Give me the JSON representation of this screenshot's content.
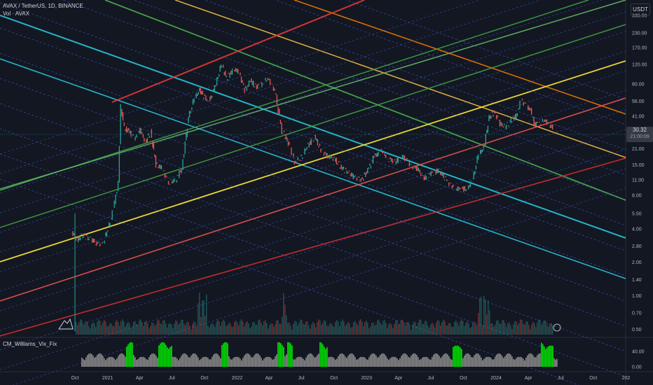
{
  "header": {
    "symbol": "AVAX / TetherUS, 1D, BINANCE",
    "volume": "Vol · AVAX"
  },
  "currency": "USDT",
  "last_price": "30.32",
  "countdown": "21:00:09",
  "oscillator": {
    "name": "CM_Williams_Vix_Fix",
    "ticks": [
      "40.00",
      "0.00"
    ]
  },
  "chart_data": {
    "type": "candlestick",
    "x_ticks": [
      "Oct",
      "2021",
      "Apr",
      "Jul",
      "Oct",
      "2022",
      "Apr",
      "Jul",
      "Oct",
      "2023",
      "Apr",
      "Jul",
      "Oct",
      "2024",
      "Apr",
      "Jul",
      "Oct",
      "202"
    ],
    "y_scale": "log",
    "y_ticks": [
      "330.00",
      "230.00",
      "170.00",
      "120.00",
      "80.00",
      "56.00",
      "41.00",
      "30.32",
      "21.00",
      "15.00",
      "11.00",
      "8.00",
      "5.50",
      "4.00",
      "2.80",
      "2.00",
      "1.40",
      "1.00",
      "0.70",
      "0.50"
    ],
    "price_path": [
      {
        "date": "2020-09-22",
        "close": 3.8
      },
      {
        "date": "2020-10-10",
        "close": 3.2
      },
      {
        "date": "2020-10-25",
        "close": 3.5
      },
      {
        "date": "2020-11-10",
        "close": 3.3
      },
      {
        "date": "2020-12-01",
        "close": 3.0
      },
      {
        "date": "2020-12-20",
        "close": 2.9
      },
      {
        "date": "2021-01-05",
        "close": 4.0
      },
      {
        "date": "2021-01-20",
        "close": 6.0
      },
      {
        "date": "2021-02-03",
        "close": 10.5
      },
      {
        "date": "2021-02-10",
        "close": 50.0
      },
      {
        "date": "2021-02-20",
        "close": 32.0
      },
      {
        "date": "2021-03-05",
        "close": 30.0
      },
      {
        "date": "2021-03-20",
        "close": 25.0
      },
      {
        "date": "2021-04-05",
        "close": 31.0
      },
      {
        "date": "2021-04-20",
        "close": 24.0
      },
      {
        "date": "2021-05-05",
        "close": 30.0
      },
      {
        "date": "2021-05-20",
        "close": 15.0
      },
      {
        "date": "2021-06-05",
        "close": 14.0
      },
      {
        "date": "2021-06-25",
        "close": 10.5
      },
      {
        "date": "2021-07-15",
        "close": 11.0
      },
      {
        "date": "2021-08-01",
        "close": 14.0
      },
      {
        "date": "2021-08-20",
        "close": 40.0
      },
      {
        "date": "2021-09-05",
        "close": 60.0
      },
      {
        "date": "2021-09-20",
        "close": 70.0
      },
      {
        "date": "2021-10-05",
        "close": 60.0
      },
      {
        "date": "2021-10-20",
        "close": 58.0
      },
      {
        "date": "2021-11-05",
        "close": 80.0
      },
      {
        "date": "2021-11-20",
        "close": 120.0
      },
      {
        "date": "2021-12-05",
        "close": 90.0
      },
      {
        "date": "2021-12-25",
        "close": 110.0
      },
      {
        "date": "2022-01-10",
        "close": 100.0
      },
      {
        "date": "2022-01-25",
        "close": 70.0
      },
      {
        "date": "2022-02-10",
        "close": 85.0
      },
      {
        "date": "2022-02-25",
        "close": 75.0
      },
      {
        "date": "2022-03-15",
        "close": 80.0
      },
      {
        "date": "2022-04-01",
        "close": 90.0
      },
      {
        "date": "2022-04-20",
        "close": 70.0
      },
      {
        "date": "2022-05-10",
        "close": 30.0
      },
      {
        "date": "2022-05-25",
        "close": 25.0
      },
      {
        "date": "2022-06-15",
        "close": 16.0
      },
      {
        "date": "2022-07-01",
        "close": 17.0
      },
      {
        "date": "2022-07-20",
        "close": 22.0
      },
      {
        "date": "2022-08-10",
        "close": 27.0
      },
      {
        "date": "2022-08-25",
        "close": 21.0
      },
      {
        "date": "2022-09-15",
        "close": 18.0
      },
      {
        "date": "2022-10-05",
        "close": 17.0
      },
      {
        "date": "2022-10-25",
        "close": 14.0
      },
      {
        "date": "2022-11-10",
        "close": 13.0
      },
      {
        "date": "2022-11-25",
        "close": 12.0
      },
      {
        "date": "2022-12-20",
        "close": 11.0
      },
      {
        "date": "2023-01-10",
        "close": 14.0
      },
      {
        "date": "2023-01-25",
        "close": 18.0
      },
      {
        "date": "2023-02-15",
        "close": 20.0
      },
      {
        "date": "2023-03-05",
        "close": 17.0
      },
      {
        "date": "2023-03-25",
        "close": 16.0
      },
      {
        "date": "2023-04-15",
        "close": 18.0
      },
      {
        "date": "2023-05-05",
        "close": 15.0
      },
      {
        "date": "2023-05-25",
        "close": 14.0
      },
      {
        "date": "2023-06-15",
        "close": 11.5
      },
      {
        "date": "2023-07-05",
        "close": 12.5
      },
      {
        "date": "2023-07-25",
        "close": 13.5
      },
      {
        "date": "2023-08-15",
        "close": 11.0
      },
      {
        "date": "2023-09-05",
        "close": 9.5
      },
      {
        "date": "2023-09-25",
        "close": 9.0
      },
      {
        "date": "2023-10-15",
        "close": 9.3
      },
      {
        "date": "2023-10-30",
        "close": 11.0
      },
      {
        "date": "2023-11-15",
        "close": 19.0
      },
      {
        "date": "2023-11-30",
        "close": 21.0
      },
      {
        "date": "2023-12-15",
        "close": 40.0
      },
      {
        "date": "2023-12-30",
        "close": 45.0
      },
      {
        "date": "2024-01-15",
        "close": 35.0
      },
      {
        "date": "2024-01-30",
        "close": 33.0
      },
      {
        "date": "2024-02-15",
        "close": 38.0
      },
      {
        "date": "2024-03-01",
        "close": 42.0
      },
      {
        "date": "2024-03-15",
        "close": 58.0
      },
      {
        "date": "2024-03-25",
        "close": 52.0
      },
      {
        "date": "2024-04-10",
        "close": 46.0
      },
      {
        "date": "2024-04-20",
        "close": 35.0
      },
      {
        "date": "2024-05-05",
        "close": 35.0
      },
      {
        "date": "2024-05-20",
        "close": 38.0
      },
      {
        "date": "2024-06-05",
        "close": 34.0
      },
      {
        "date": "2024-06-15",
        "close": 30.32
      }
    ]
  }
}
